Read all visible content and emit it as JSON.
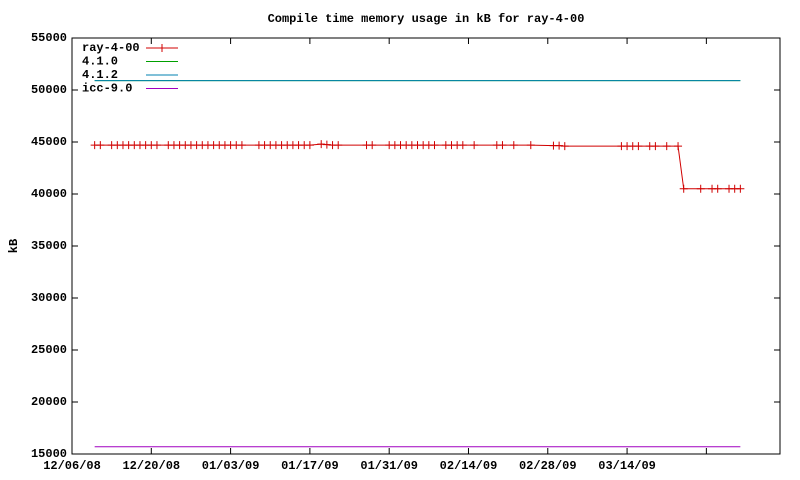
{
  "chart_data": {
    "type": "line",
    "title": "Compile time memory usage in kB for ray-4-00",
    "y_label": "kB",
    "ylim": [
      15000,
      55000
    ],
    "yticks": [
      15000,
      20000,
      25000,
      30000,
      35000,
      40000,
      45000,
      50000,
      55000
    ],
    "xlim": [
      "2008-12-06",
      "2009-04-10"
    ],
    "xticks": [
      {
        "value": "2008-12-06",
        "label": "12/06/08"
      },
      {
        "value": "2008-12-20",
        "label": "12/20/08"
      },
      {
        "value": "2009-01-03",
        "label": "01/03/09"
      },
      {
        "value": "2009-01-17",
        "label": "01/17/09"
      },
      {
        "value": "2009-01-31",
        "label": "01/31/09"
      },
      {
        "value": "2009-02-14",
        "label": "02/14/09"
      },
      {
        "value": "2009-02-28",
        "label": "02/28/09"
      },
      {
        "value": "2009-03-14",
        "label": "03/14/09"
      },
      {
        "value": "2009-03-28",
        "label": null
      }
    ],
    "grid": false,
    "legend": "top-left",
    "series": [
      {
        "name": "ray-4-00",
        "color": "#d00000",
        "marker": "+",
        "x": [
          "2008-12-10",
          "2008-12-11",
          "2008-12-13",
          "2008-12-14",
          "2008-12-15",
          "2008-12-16",
          "2008-12-17",
          "2008-12-18",
          "2008-12-19",
          "2008-12-20",
          "2008-12-21",
          "2008-12-23",
          "2008-12-24",
          "2008-12-25",
          "2008-12-26",
          "2008-12-27",
          "2008-12-28",
          "2008-12-29",
          "2008-12-30",
          "2008-12-31",
          "2009-01-01",
          "2009-01-02",
          "2009-01-03",
          "2009-01-04",
          "2009-01-05",
          "2009-01-08",
          "2009-01-09",
          "2009-01-10",
          "2009-01-11",
          "2009-01-12",
          "2009-01-13",
          "2009-01-14",
          "2009-01-15",
          "2009-01-16",
          "2009-01-17",
          "2009-01-19",
          "2009-01-20",
          "2009-01-21",
          "2009-01-22",
          "2009-01-27",
          "2009-01-28",
          "2009-01-31",
          "2009-02-01",
          "2009-02-02",
          "2009-02-03",
          "2009-02-04",
          "2009-02-05",
          "2009-02-06",
          "2009-02-07",
          "2009-02-08",
          "2009-02-10",
          "2009-02-11",
          "2009-02-12",
          "2009-02-13",
          "2009-02-15",
          "2009-02-19",
          "2009-02-20",
          "2009-02-22",
          "2009-02-25",
          "2009-03-01",
          "2009-03-02",
          "2009-03-03",
          "2009-03-13",
          "2009-03-14",
          "2009-03-15",
          "2009-03-16",
          "2009-03-18",
          "2009-03-19",
          "2009-03-21",
          "2009-03-23",
          "2009-03-24",
          "2009-03-27",
          "2009-03-29",
          "2009-03-30",
          "2009-04-01",
          "2009-04-02",
          "2009-04-03"
        ],
        "values": [
          44700,
          44700,
          44700,
          44700,
          44700,
          44700,
          44700,
          44700,
          44700,
          44700,
          44700,
          44700,
          44700,
          44700,
          44700,
          44700,
          44700,
          44700,
          44700,
          44700,
          44700,
          44700,
          44700,
          44700,
          44700,
          44700,
          44700,
          44700,
          44700,
          44700,
          44700,
          44700,
          44700,
          44700,
          44700,
          44800,
          44750,
          44700,
          44700,
          44700,
          44700,
          44700,
          44700,
          44700,
          44700,
          44700,
          44700,
          44700,
          44700,
          44700,
          44700,
          44700,
          44700,
          44700,
          44700,
          44700,
          44700,
          44700,
          44700,
          44650,
          44650,
          44600,
          44600,
          44600,
          44600,
          44600,
          44600,
          44600,
          44600,
          44600,
          40500,
          40500,
          40500,
          40500,
          40500,
          40500,
          40500
        ]
      },
      {
        "name": "4.1.0",
        "color": "#00a000",
        "x": [
          "2008-12-10",
          "2009-04-03"
        ],
        "values": [
          50900,
          50900
        ]
      },
      {
        "name": "4.1.2",
        "color": "#0080b0",
        "x": [
          "2008-12-10",
          "2009-04-03"
        ],
        "values": [
          50900,
          50900
        ]
      },
      {
        "name": "icc-9.0",
        "color": "#a000c0",
        "x": [
          "2008-12-10",
          "2009-04-03"
        ],
        "values": [
          15700,
          15700
        ]
      }
    ]
  }
}
